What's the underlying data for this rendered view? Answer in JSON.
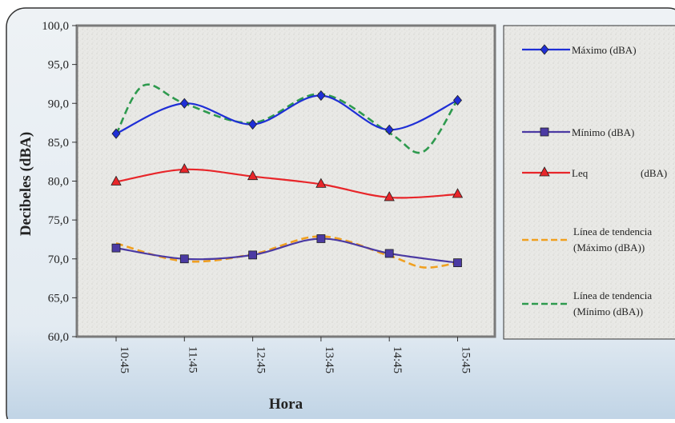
{
  "chart_data": {
    "type": "line",
    "xlabel": "Hora",
    "ylabel": "Decibeles (dBA)",
    "categories": [
      "10:45",
      "11:45",
      "12:45",
      "13:45",
      "14:45",
      "15:45"
    ],
    "ylim": [
      60,
      100
    ],
    "yticks": [
      "60,0",
      "65,0",
      "70,0",
      "75,0",
      "80,0",
      "85,0",
      "90,0",
      "95,0",
      "100,0"
    ],
    "grid": false,
    "legend_position": "right",
    "series": [
      {
        "name": "Máximo (dBA)",
        "values": [
          86.1,
          90.0,
          87.3,
          91.0,
          86.6,
          90.4
        ],
        "color": "#1f2fd6",
        "marker": "diamond",
        "dashed": false,
        "smooth": true
      },
      {
        "name": "Mínimo (dBA)",
        "values": [
          71.4,
          70.0,
          70.5,
          72.6,
          70.7,
          69.5
        ],
        "color": "#4b3aa3",
        "marker": "square",
        "dashed": false,
        "smooth": true
      },
      {
        "name": "Leq         (dBA)",
        "values": [
          79.9,
          81.5,
          80.6,
          79.6,
          77.9,
          78.3
        ],
        "color": "#e8262a",
        "marker": "triangle",
        "dashed": false,
        "smooth": true
      },
      {
        "name": "Línea de tendencia (Máximo (dBA))",
        "values": [
          72.0,
          69.7,
          70.6,
          72.9,
          70.4,
          69.5
        ],
        "trend_min": {
          "x": 4.5,
          "y": 68.9
        },
        "color": "#f0a020",
        "marker": "none",
        "dashed": true,
        "smooth": true
      },
      {
        "name": "Línea de tendencia (Mínimo (dBA))",
        "values": [
          86.0,
          90.0,
          87.5,
          91.2,
          86.2,
          90.5
        ],
        "trend_peak": {
          "x": 0.4,
          "y": 92.3
        },
        "trend_min": {
          "x": 4.5,
          "y": 83.8
        },
        "color": "#2e9a4e",
        "marker": "none",
        "dashed": true,
        "smooth": true
      }
    ]
  },
  "legend_lines": [
    [
      "Máximo (dBA)"
    ],
    [
      "Mínimo (dBA)"
    ],
    [
      "Leq",
      "(dBA)"
    ],
    [
      "Línea de tendencia",
      "(Máximo (dBA))"
    ],
    [
      "Línea de tendencia",
      "(Mínimo (dBA))"
    ]
  ]
}
